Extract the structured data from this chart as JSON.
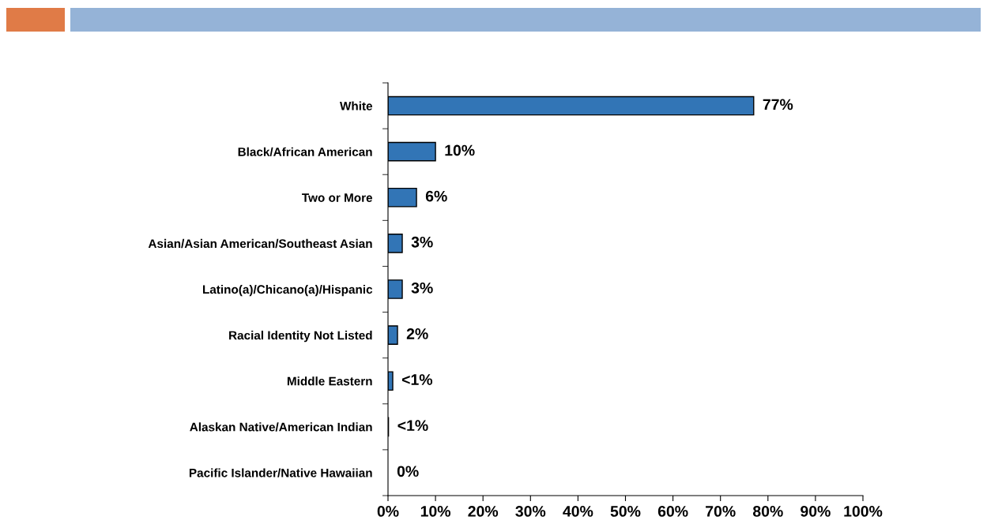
{
  "chart_data": {
    "type": "bar",
    "orientation": "horizontal",
    "categories": [
      "White",
      "Black/African American",
      "Two or More",
      "Asian/Asian American/Southeast Asian",
      "Latino(a)/Chicano(a)/Hispanic",
      "Racial Identity Not Listed",
      "Middle Eastern",
      "Alaskan Native/American Indian",
      "Pacific Islander/Native Hawaiian"
    ],
    "values": [
      77,
      10,
      6,
      3,
      3,
      2,
      1,
      0.1,
      0
    ],
    "value_labels": [
      "77%",
      "10%",
      "6%",
      "3%",
      "3%",
      "2%",
      "<1%",
      "<1%",
      "0%"
    ],
    "color": "#3275b6",
    "xlim": [
      0,
      100
    ],
    "xticks": [
      {
        "value": 0,
        "label": "0%"
      },
      {
        "value": 10,
        "label": "10%"
      },
      {
        "value": 20,
        "label": "20%"
      },
      {
        "value": 30,
        "label": "30%"
      },
      {
        "value": 40,
        "label": "40%"
      },
      {
        "value": 50,
        "label": "50%"
      },
      {
        "value": 60,
        "label": "60%"
      },
      {
        "value": 70,
        "label": "70%"
      },
      {
        "value": 80,
        "label": "80%"
      },
      {
        "value": 90,
        "label": "90%"
      },
      {
        "value": 100,
        "label": "100%"
      }
    ],
    "grid": false,
    "legend": false
  }
}
